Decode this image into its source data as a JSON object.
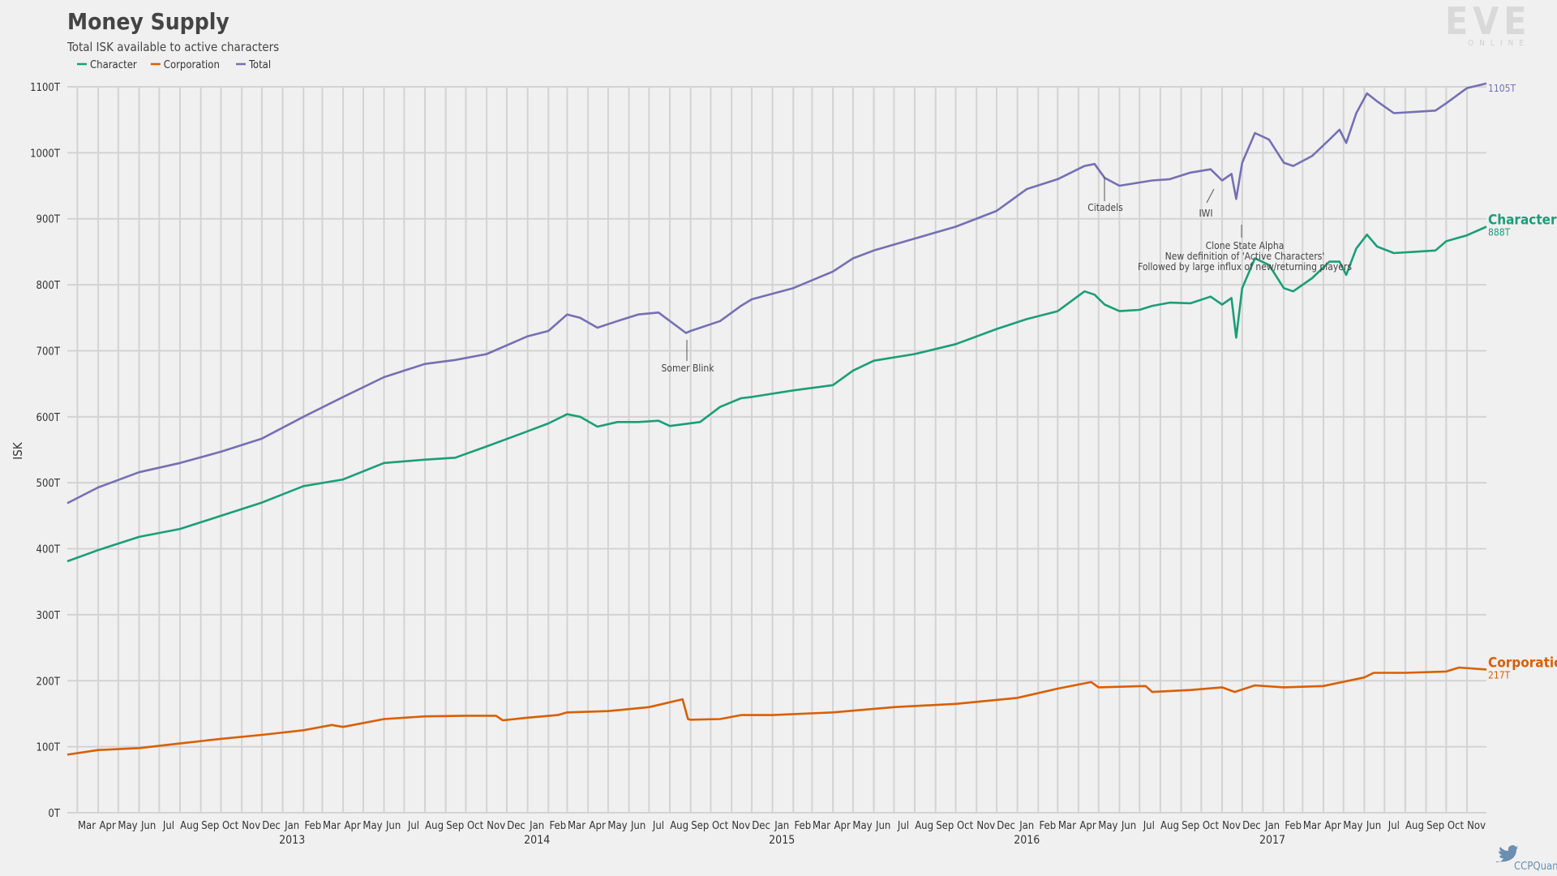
{
  "chart_data": {
    "type": "line",
    "title": "Money Supply",
    "subtitle": "Total ISK available to active characters",
    "ylabel": "ISK",
    "ylim": [
      0,
      1100
    ],
    "y_unit": "T",
    "y_ticks": [
      "0T",
      "100T",
      "200T",
      "300T",
      "400T",
      "500T",
      "600T",
      "700T",
      "800T",
      "900T",
      "1000T",
      "1100T"
    ],
    "x_start": "2012-02-15",
    "x_end": "2017-11-30",
    "month_labels": [
      "Mar",
      "Apr",
      "May",
      "Jun",
      "Jul",
      "Aug",
      "Sep",
      "Oct",
      "Nov",
      "Dec",
      "Jan",
      "Feb",
      "Mar",
      "Apr",
      "May",
      "Jun",
      "Jul",
      "Aug",
      "Sep",
      "Oct",
      "Nov",
      "Dec",
      "Jan",
      "Feb",
      "Mar",
      "Apr",
      "May",
      "Jun",
      "Jul",
      "Aug",
      "Sep",
      "Oct",
      "Nov",
      "Dec",
      "Jan",
      "Feb",
      "Mar",
      "Apr",
      "May",
      "Jun",
      "Jul",
      "Aug",
      "Sep",
      "Oct",
      "Nov",
      "Dec",
      "Jan",
      "Feb",
      "Mar",
      "Apr",
      "May",
      "Jun",
      "Jul",
      "Aug",
      "Sep",
      "Oct",
      "Nov",
      "Dec",
      "Jan",
      "Feb",
      "Mar",
      "Apr",
      "May",
      "Jun",
      "Jul",
      "Aug",
      "Sep",
      "Oct",
      "Nov"
    ],
    "year_labels": [
      "2013",
      "2014",
      "2015",
      "2016",
      "2017"
    ],
    "legend": [
      {
        "name": "Character",
        "color": "#1b9e77"
      },
      {
        "name": "Corporation",
        "color": "#d95f02"
      },
      {
        "name": "Total",
        "color": "#7570b3"
      }
    ],
    "series": [
      {
        "name": "Character",
        "color": "#1b9e77",
        "end_label": "Character",
        "end_value": "888T",
        "x": [
          "2012-02-15",
          "2012-04-01",
          "2012-06-01",
          "2012-08-01",
          "2012-10-01",
          "2012-12-01",
          "2013-02-01",
          "2013-04-01",
          "2013-06-01",
          "2013-08-01",
          "2013-09-15",
          "2013-11-01",
          "2014-01-01",
          "2014-02-01",
          "2014-03-01",
          "2014-03-20",
          "2014-04-15",
          "2014-05-15",
          "2014-06-15",
          "2014-07-15",
          "2014-08-01",
          "2014-09-15",
          "2014-10-15",
          "2014-11-15",
          "2014-12-01",
          "2015-02-01",
          "2015-04-01",
          "2015-05-01",
          "2015-06-01",
          "2015-08-01",
          "2015-10-01",
          "2015-12-01",
          "2016-01-15",
          "2016-03-01",
          "2016-04-10",
          "2016-04-25",
          "2016-05-10",
          "2016-06-01",
          "2016-07-01",
          "2016-07-20",
          "2016-08-15",
          "2016-09-15",
          "2016-10-15",
          "2016-11-01",
          "2016-11-15",
          "2016-11-22",
          "2016-12-01",
          "2016-12-20",
          "2017-01-10",
          "2017-02-01",
          "2017-02-15",
          "2017-03-15",
          "2017-04-10",
          "2017-04-25",
          "2017-05-05",
          "2017-05-20",
          "2017-06-05",
          "2017-06-20",
          "2017-07-15",
          "2017-08-15",
          "2017-09-15",
          "2017-10-01",
          "2017-11-01",
          "2017-11-30"
        ],
        "values": [
          381,
          398,
          418,
          430,
          450,
          470,
          495,
          505,
          530,
          535,
          538,
          555,
          578,
          590,
          604,
          600,
          585,
          592,
          592,
          594,
          586,
          592,
          615,
          628,
          630,
          640,
          648,
          670,
          685,
          695,
          710,
          733,
          748,
          760,
          790,
          785,
          770,
          760,
          762,
          768,
          773,
          772,
          782,
          770,
          780,
          720,
          795,
          840,
          830,
          795,
          790,
          810,
          835,
          835,
          815,
          855,
          876,
          858,
          848,
          850,
          852,
          866,
          875,
          888
        ]
      },
      {
        "name": "Corporation",
        "color": "#d95f02",
        "end_label": "Corporation",
        "end_value": "217T",
        "x": [
          "2012-02-15",
          "2012-04-01",
          "2012-06-01",
          "2012-08-01",
          "2012-10-01",
          "2012-12-01",
          "2013-02-01",
          "2013-03-15",
          "2013-04-01",
          "2013-06-01",
          "2013-08-01",
          "2013-10-01",
          "2013-11-15",
          "2013-11-25",
          "2014-01-01",
          "2014-02-15",
          "2014-03-01",
          "2014-05-01",
          "2014-07-01",
          "2014-08-20",
          "2014-08-28",
          "2014-09-01",
          "2014-10-15",
          "2014-11-15",
          "2015-01-01",
          "2015-04-01",
          "2015-07-01",
          "2015-10-01",
          "2016-01-01",
          "2016-03-01",
          "2016-04-20",
          "2016-05-01",
          "2016-07-10",
          "2016-07-20",
          "2016-09-15",
          "2016-11-01",
          "2016-11-20",
          "2016-12-20",
          "2017-02-01",
          "2017-04-01",
          "2017-06-01",
          "2017-06-15",
          "2017-08-01",
          "2017-10-01",
          "2017-10-20",
          "2017-11-30"
        ],
        "values": [
          88,
          95,
          98,
          105,
          112,
          118,
          125,
          133,
          130,
          142,
          146,
          147,
          147,
          140,
          144,
          148,
          152,
          154,
          160,
          172,
          142,
          141,
          142,
          148,
          148,
          152,
          160,
          165,
          174,
          188,
          198,
          190,
          192,
          183,
          186,
          190,
          183,
          193,
          190,
          192,
          205,
          212,
          212,
          214,
          220,
          217
        ]
      },
      {
        "name": "Total",
        "color": "#7570b3",
        "end_label": "",
        "end_value": "1105T",
        "x": [
          "2012-02-15",
          "2012-04-01",
          "2012-06-01",
          "2012-08-01",
          "2012-10-01",
          "2012-12-01",
          "2013-02-01",
          "2013-04-01",
          "2013-06-01",
          "2013-08-01",
          "2013-09-15",
          "2013-11-01",
          "2014-01-01",
          "2014-02-01",
          "2014-03-01",
          "2014-03-20",
          "2014-04-15",
          "2014-05-15",
          "2014-06-15",
          "2014-07-15",
          "2014-08-25",
          "2014-09-01",
          "2014-10-15",
          "2014-11-15",
          "2014-12-01",
          "2015-02-01",
          "2015-04-01",
          "2015-05-01",
          "2015-06-01",
          "2015-08-01",
          "2015-10-01",
          "2015-12-01",
          "2016-01-15",
          "2016-03-01",
          "2016-04-10",
          "2016-04-25",
          "2016-05-10",
          "2016-06-01",
          "2016-07-01",
          "2016-07-20",
          "2016-08-15",
          "2016-09-15",
          "2016-10-15",
          "2016-11-01",
          "2016-11-15",
          "2016-11-22",
          "2016-12-01",
          "2016-12-20",
          "2017-01-10",
          "2017-02-01",
          "2017-02-15",
          "2017-03-15",
          "2017-04-10",
          "2017-04-25",
          "2017-05-05",
          "2017-05-20",
          "2017-06-05",
          "2017-06-20",
          "2017-07-15",
          "2017-08-15",
          "2017-09-15",
          "2017-10-01",
          "2017-11-01",
          "2017-11-30"
        ],
        "values": [
          469,
          493,
          516,
          530,
          547,
          567,
          600,
          630,
          660,
          680,
          686,
          695,
          722,
          730,
          755,
          750,
          735,
          745,
          755,
          758,
          727,
          730,
          745,
          768,
          778,
          795,
          820,
          840,
          852,
          870,
          888,
          912,
          945,
          960,
          980,
          983,
          962,
          950,
          955,
          958,
          960,
          970,
          975,
          958,
          968,
          930,
          985,
          1030,
          1020,
          985,
          980,
          995,
          1020,
          1035,
          1015,
          1060,
          1090,
          1078,
          1060,
          1062,
          1064,
          1075,
          1098,
          1105
        ]
      }
    ],
    "annotations": [
      {
        "lines": [
          "Somer Blink"
        ]
      },
      {
        "lines": [
          "Citadels"
        ]
      },
      {
        "lines": [
          "IWI"
        ]
      },
      {
        "lines": [
          "Clone State Alpha",
          "New definition of 'Active Characters'",
          "Followed by large influx of new/returning players"
        ]
      }
    ],
    "grid": true,
    "legend_position": "top-left"
  },
  "branding": {
    "logo": "EVE",
    "logo_sub": "ONLINE",
    "credit": "CCPQuant"
  }
}
